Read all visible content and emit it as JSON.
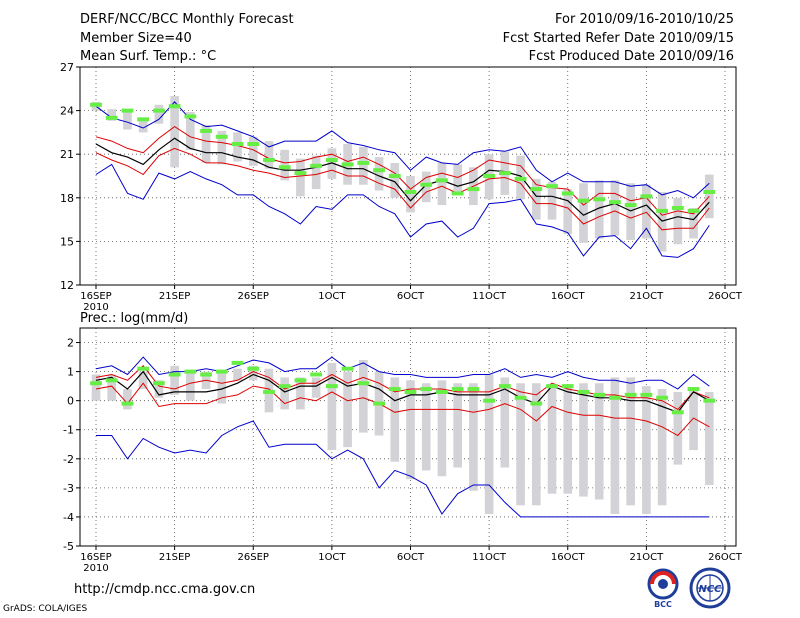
{
  "header": {
    "title": "DERF/NCC/BCC Monthly Forecast",
    "member_size": "Member Size=40",
    "variable": "Mean Surf. Temp.: °C",
    "period": "For 2010/09/16-2010/10/25",
    "started": "Fcst Started Refer Date 2010/09/15",
    "produced": "Fcst Produced Date 2010/09/16"
  },
  "footer": {
    "url": "http://cmdp.ncc.cma.gov.cn",
    "credit": "GrADS: COLA/IGES",
    "logo_left": "BCC",
    "logo_right": "NCC"
  },
  "colors": {
    "envelope": "#0000cc",
    "spread": "#dd0000",
    "mean": "#000000",
    "box": "#d3d3d7",
    "obs": "#66ee44",
    "grid": "#555555"
  },
  "chart_data": [
    {
      "type": "line",
      "panel": "top",
      "title": "",
      "ylabel": "Mean Surf. Temp.: °C",
      "ylim": [
        12,
        27
      ],
      "yticks": [
        12,
        15,
        18,
        21,
        24,
        27
      ],
      "grid": true,
      "xlim": [
        0,
        40
      ],
      "xticks": [
        {
          "x": 0,
          "label": "16SEP",
          "sub": "2010"
        },
        {
          "x": 5,
          "label": "21SEP"
        },
        {
          "x": 10,
          "label": "26SEP"
        },
        {
          "x": 15,
          "label": "1OCT"
        },
        {
          "x": 20,
          "label": "6OCT"
        },
        {
          "x": 25,
          "label": "11OCT"
        },
        {
          "x": 30,
          "label": "16OCT"
        },
        {
          "x": 35,
          "label": "21OCT"
        },
        {
          "x": 40,
          "label": "26OCT"
        }
      ],
      "days": [
        0,
        1,
        2,
        3,
        4,
        5,
        6,
        7,
        8,
        9,
        10,
        11,
        12,
        13,
        14,
        15,
        16,
        17,
        18,
        19,
        20,
        21,
        22,
        23,
        24,
        25,
        26,
        27,
        28,
        29,
        30,
        31,
        32,
        33,
        34,
        35,
        36,
        37,
        38,
        39
      ],
      "box_top": [
        24.6,
        24.1,
        24.0,
        23.3,
        24.4,
        25.0,
        23.9,
        23.0,
        22.6,
        22.5,
        22.2,
        21.9,
        21.3,
        20.7,
        20.9,
        21.4,
        21.7,
        21.5,
        20.8,
        20.4,
        19.5,
        19.8,
        20.4,
        20.3,
        20.1,
        21.0,
        21.2,
        20.9,
        19.3,
        19.1,
        18.6,
        19.0,
        19.2,
        19.2,
        19.0,
        18.9,
        18.4,
        18.0,
        17.3,
        19.6
      ],
      "box_bottom": [
        24.0,
        23.3,
        22.7,
        22.5,
        23.1,
        20.1,
        21.3,
        20.4,
        20.3,
        20.5,
        20.2,
        20.0,
        19.2,
        18.1,
        18.6,
        19.3,
        18.9,
        18.9,
        18.5,
        18.0,
        17.0,
        17.7,
        17.5,
        18.4,
        17.5,
        17.9,
        18.2,
        17.9,
        16.5,
        16.5,
        15.5,
        14.9,
        15.2,
        15.4,
        15.1,
        15.2,
        14.3,
        14.8,
        15.2,
        16.6
      ],
      "series": [
        {
          "name": "max",
          "color": "#0000cc",
          "values": [
            24.3,
            23.5,
            23.2,
            22.8,
            23.4,
            24.6,
            23.4,
            22.9,
            23.0,
            22.6,
            22.2,
            21.5,
            21.9,
            21.9,
            21.9,
            22.6,
            21.8,
            21.6,
            21.3,
            21.1,
            19.9,
            20.8,
            20.4,
            20.3,
            21.1,
            21.3,
            21.2,
            21.5,
            19.9,
            19.1,
            19.7,
            19.1,
            19.1,
            19.1,
            18.8,
            18.9,
            18.2,
            18.5,
            18.0,
            19.0
          ]
        },
        {
          "name": "upper",
          "color": "#dd0000",
          "values": [
            22.2,
            21.9,
            21.4,
            21.1,
            22.1,
            22.9,
            22.2,
            21.9,
            21.8,
            21.6,
            21.3,
            20.7,
            20.4,
            20.5,
            20.8,
            21.0,
            20.5,
            20.8,
            20.3,
            19.7,
            18.6,
            19.4,
            19.7,
            19.4,
            19.9,
            20.6,
            20.4,
            20.2,
            18.9,
            18.7,
            18.6,
            17.5,
            18.3,
            18.3,
            17.8,
            18.0,
            16.8,
            17.1,
            16.9,
            18.1
          ]
        },
        {
          "name": "mean",
          "color": "#000000",
          "values": [
            21.7,
            21.1,
            20.8,
            20.3,
            21.3,
            22.1,
            21.4,
            21.1,
            21.1,
            20.8,
            20.6,
            20.1,
            19.9,
            19.9,
            20.1,
            20.4,
            20.0,
            20.0,
            19.5,
            19.1,
            17.8,
            18.9,
            19.2,
            18.8,
            19.1,
            19.9,
            19.8,
            19.5,
            18.1,
            18.1,
            17.8,
            16.8,
            17.3,
            17.6,
            17.1,
            17.5,
            16.4,
            16.7,
            16.5,
            17.7
          ]
        },
        {
          "name": "lower",
          "color": "#dd0000",
          "values": [
            21.1,
            20.6,
            20.2,
            19.6,
            20.9,
            21.4,
            21.0,
            20.4,
            20.4,
            20.2,
            19.9,
            19.7,
            19.4,
            19.5,
            19.6,
            19.9,
            19.5,
            19.5,
            19.0,
            18.6,
            17.3,
            18.4,
            18.8,
            18.3,
            18.8,
            19.3,
            19.4,
            19.0,
            17.6,
            17.6,
            17.3,
            16.2,
            16.7,
            17.1,
            16.6,
            17.0,
            15.8,
            15.9,
            15.9,
            17.3
          ]
        },
        {
          "name": "min",
          "color": "#0000cc",
          "values": [
            19.6,
            20.3,
            18.3,
            17.9,
            19.7,
            19.3,
            19.8,
            19.3,
            18.9,
            18.2,
            18.2,
            17.4,
            16.9,
            16.2,
            17.4,
            17.2,
            18.2,
            18.2,
            17.4,
            16.9,
            15.3,
            16.2,
            16.4,
            15.3,
            15.9,
            17.6,
            17.7,
            17.9,
            16.2,
            16.0,
            15.6,
            14.0,
            15.3,
            15.4,
            14.5,
            15.9,
            14.0,
            13.9,
            14.5,
            16.1
          ]
        }
      ],
      "observed": [
        24.4,
        23.5,
        24.0,
        23.4,
        24.0,
        24.3,
        23.6,
        22.6,
        22.2,
        21.7,
        21.7,
        20.6,
        20.1,
        19.7,
        20.2,
        20.6,
        20.3,
        20.4,
        19.9,
        19.5,
        18.4,
        18.9,
        19.2,
        18.3,
        18.6,
        19.5,
        19.7,
        19.3,
        18.6,
        18.8,
        18.3,
        17.8,
        17.9,
        17.7,
        17.5,
        18.1,
        17.1,
        17.3,
        17.1,
        18.4
      ]
    },
    {
      "type": "line",
      "panel": "bottom",
      "title": "Prec.: log(mm/d)",
      "ylabel": "Prec.: log(mm/d)",
      "ylim": [
        -5,
        2.5
      ],
      "yticks": [
        -5,
        -4,
        -3,
        -2,
        -1,
        0,
        1,
        2
      ],
      "grid": true,
      "xlim": [
        0,
        40
      ],
      "xticks": [
        {
          "x": 0,
          "label": "16SEP",
          "sub": "2010"
        },
        {
          "x": 5,
          "label": "21SEP"
        },
        {
          "x": 10,
          "label": "26SEP"
        },
        {
          "x": 15,
          "label": "1OCT"
        },
        {
          "x": 20,
          "label": "6OCT"
        },
        {
          "x": 25,
          "label": "11OCT"
        },
        {
          "x": 30,
          "label": "16OCT"
        },
        {
          "x": 35,
          "label": "21OCT"
        },
        {
          "x": 40,
          "label": "26OCT"
        }
      ],
      "days": [
        0,
        1,
        2,
        3,
        4,
        5,
        6,
        7,
        8,
        9,
        10,
        11,
        12,
        13,
        14,
        15,
        16,
        17,
        18,
        19,
        20,
        21,
        22,
        23,
        24,
        25,
        26,
        27,
        28,
        29,
        30,
        31,
        32,
        33,
        34,
        35,
        36,
        37,
        38,
        39
      ],
      "box_top": [
        0.9,
        0.9,
        0.4,
        1.0,
        0.7,
        1.2,
        1.0,
        1.0,
        1.0,
        1.1,
        1.2,
        1.1,
        0.8,
        0.8,
        0.8,
        1.3,
        1.0,
        1.4,
        1.0,
        0.8,
        0.7,
        0.6,
        0.7,
        0.6,
        0.6,
        0.9,
        0.8,
        0.6,
        0.6,
        0.5,
        0.5,
        0.6,
        0.6,
        0.8,
        0.8,
        0.5,
        0.4,
        0.3,
        0.4,
        0.3
      ],
      "box_bottom": [
        0.0,
        0.0,
        -0.3,
        0.4,
        0.1,
        0.2,
        0.0,
        0.4,
        -0.1,
        0.7,
        0.7,
        -0.4,
        -0.3,
        -0.3,
        0.1,
        -1.7,
        -1.6,
        -1.1,
        -1.2,
        -2.1,
        -2.7,
        -2.4,
        -2.6,
        -2.3,
        -3.1,
        -3.9,
        -2.3,
        -3.6,
        -3.6,
        -3.2,
        -3.2,
        -3.3,
        -3.4,
        -3.9,
        -3.6,
        -3.9,
        -3.6,
        -2.2,
        -1.7,
        -2.9
      ],
      "series": [
        {
          "name": "max",
          "color": "#0000cc",
          "values": [
            1.1,
            1.2,
            0.9,
            1.5,
            0.9,
            1.0,
            1.0,
            1.1,
            1.0,
            1.2,
            1.4,
            1.3,
            1.0,
            1.1,
            1.1,
            1.5,
            1.1,
            1.3,
            1.0,
            0.9,
            0.9,
            0.8,
            0.8,
            0.8,
            0.9,
            0.9,
            1.1,
            0.8,
            0.9,
            0.8,
            1.0,
            0.8,
            0.7,
            0.7,
            0.6,
            0.7,
            0.7,
            0.4,
            0.9,
            0.5
          ]
        },
        {
          "name": "upper",
          "color": "#dd0000",
          "values": [
            0.8,
            0.9,
            0.7,
            1.2,
            0.5,
            0.4,
            0.6,
            0.7,
            0.6,
            0.7,
            1.0,
            0.8,
            0.4,
            0.6,
            0.6,
            0.9,
            0.6,
            0.8,
            0.6,
            0.3,
            0.4,
            0.4,
            0.4,
            0.3,
            0.3,
            0.3,
            0.5,
            0.3,
            0.2,
            0.6,
            0.4,
            0.3,
            0.2,
            0.2,
            0.1,
            0.1,
            0.0,
            -0.3,
            0.3,
            0.1
          ]
        },
        {
          "name": "mean",
          "color": "#000000",
          "values": [
            0.7,
            0.8,
            0.4,
            1.0,
            0.2,
            0.3,
            0.3,
            0.3,
            0.4,
            0.6,
            0.9,
            0.7,
            0.3,
            0.5,
            0.5,
            0.8,
            0.5,
            0.6,
            0.4,
            0.0,
            0.2,
            0.2,
            0.3,
            0.2,
            0.2,
            0.2,
            0.4,
            0.1,
            -0.1,
            0.5,
            0.3,
            0.2,
            0.1,
            0.1,
            0.0,
            0.0,
            -0.2,
            -0.4,
            0.3,
            0.0
          ]
        },
        {
          "name": "lower",
          "color": "#dd0000",
          "values": [
            0.4,
            0.5,
            -0.1,
            0.6,
            -0.2,
            -0.1,
            -0.1,
            -0.1,
            0.1,
            0.2,
            0.5,
            0.4,
            -0.1,
            0.1,
            0.0,
            0.3,
            0.0,
            0.1,
            -0.1,
            -0.4,
            -0.3,
            -0.3,
            -0.3,
            -0.3,
            -0.4,
            -0.3,
            -0.1,
            -0.3,
            -0.7,
            -0.2,
            -0.4,
            -0.5,
            -0.5,
            -0.6,
            -0.6,
            -0.7,
            -0.9,
            -1.2,
            -0.6,
            -0.9
          ]
        },
        {
          "name": "min",
          "color": "#0000cc",
          "values": [
            -1.2,
            -1.2,
            -2.0,
            -1.3,
            -1.6,
            -1.8,
            -1.7,
            -1.8,
            -1.2,
            -0.9,
            -0.7,
            -1.6,
            -1.5,
            -1.5,
            -1.5,
            -2.0,
            -1.7,
            -2.0,
            -3.0,
            -2.4,
            -2.6,
            -2.9,
            -3.9,
            -3.2,
            -2.9,
            -2.9,
            -3.5,
            -4.0,
            -4.0,
            -4.0,
            -4.0,
            -4.0,
            -4.0,
            -4.0,
            -4.0,
            -4.0,
            -4.0,
            -4.0,
            -4.0,
            -4.0
          ]
        }
      ],
      "observed": [
        0.6,
        0.7,
        -0.1,
        1.1,
        0.6,
        0.9,
        1.0,
        0.9,
        1.0,
        1.3,
        1.1,
        0.3,
        0.5,
        0.7,
        0.9,
        0.5,
        1.1,
        0.6,
        -0.1,
        0.4,
        0.3,
        0.4,
        0.3,
        0.4,
        0.4,
        0.0,
        0.5,
        0.1,
        -0.1,
        0.5,
        0.5,
        0.3,
        0.2,
        0.1,
        0.2,
        0.2,
        0.1,
        -0.4,
        0.4,
        0.0
      ]
    }
  ]
}
